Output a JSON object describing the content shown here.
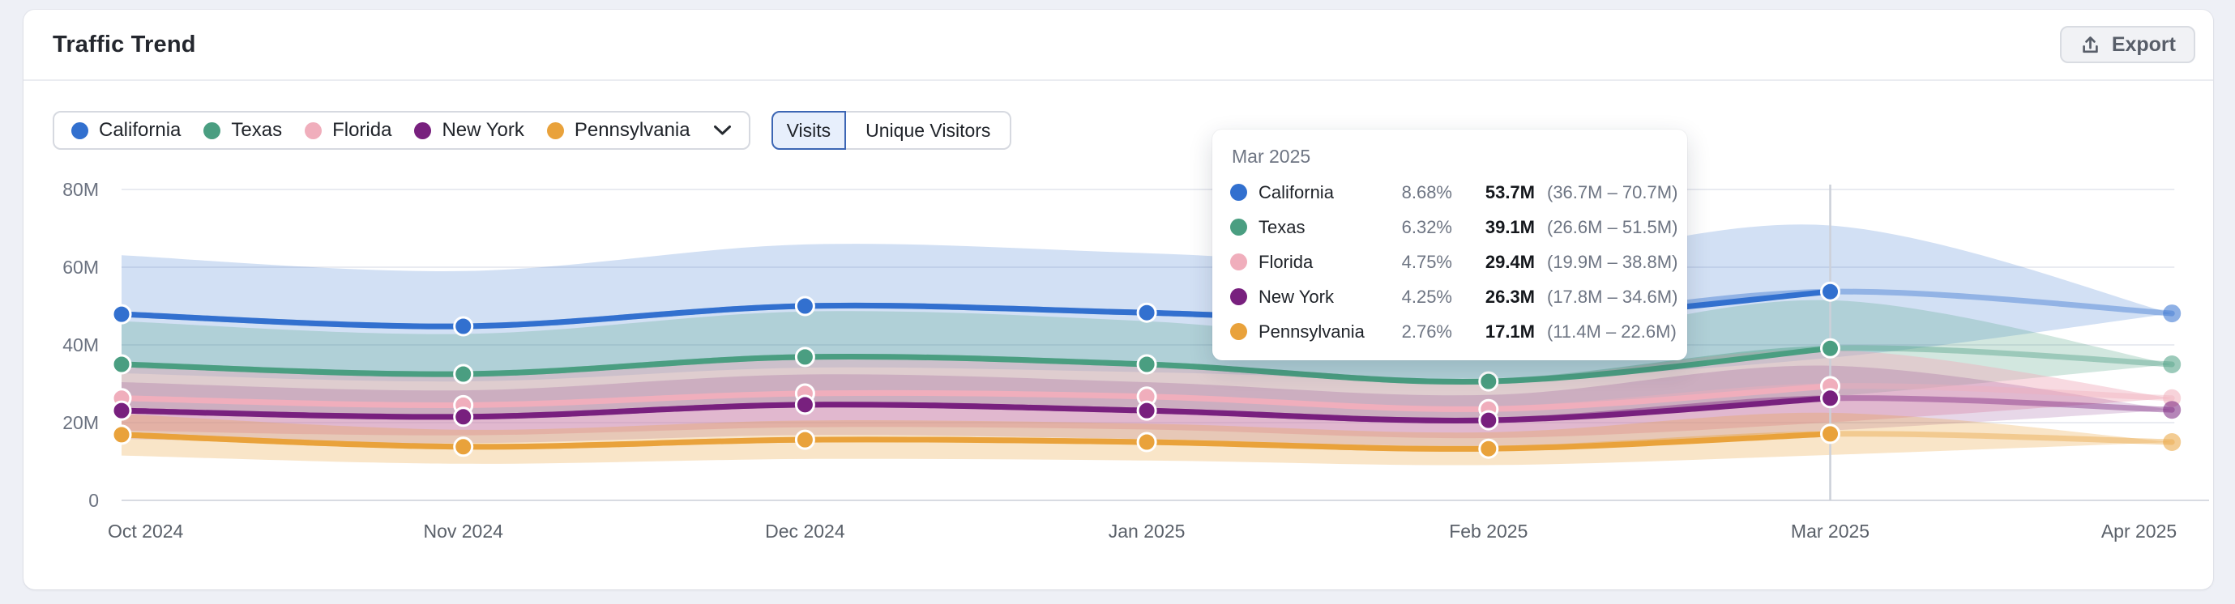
{
  "header": {
    "title": "Traffic Trend",
    "export_label": "Export"
  },
  "legend": {
    "items": [
      {
        "label": "California",
        "color": "#3270cf"
      },
      {
        "label": "Texas",
        "color": "#4a9e81"
      },
      {
        "label": "Florida",
        "color": "#f0aebc"
      },
      {
        "label": "New York",
        "color": "#78207e"
      },
      {
        "label": "Pennsylvania",
        "color": "#e9a23b"
      }
    ]
  },
  "tabs": {
    "items": [
      {
        "label": "Visits",
        "selected": true
      },
      {
        "label": "Unique Visitors",
        "selected": false
      }
    ]
  },
  "tooltip": {
    "title": "Mar 2025",
    "rows": [
      {
        "name": "California",
        "color": "#3270cf",
        "percent": "8.68%",
        "value": "53.7M",
        "range": "(36.7M – 70.7M)"
      },
      {
        "name": "Texas",
        "color": "#4a9e81",
        "percent": "6.32%",
        "value": "39.1M",
        "range": "(26.6M – 51.5M)"
      },
      {
        "name": "Florida",
        "color": "#f0aebc",
        "percent": "4.75%",
        "value": "29.4M",
        "range": "(19.9M – 38.8M)"
      },
      {
        "name": "New York",
        "color": "#78207e",
        "percent": "4.25%",
        "value": "26.3M",
        "range": "(17.8M – 34.6M)"
      },
      {
        "name": "Pennsylvania",
        "color": "#e9a23b",
        "percent": "2.76%",
        "value": "17.1M",
        "range": "(11.4M – 22.6M)"
      }
    ]
  },
  "chart_data": {
    "type": "line",
    "title": "Traffic Trend",
    "unit_note": "values in millions of visits",
    "x_categories": [
      "Oct 2024",
      "Nov 2024",
      "Dec 2024",
      "Jan 2025",
      "Feb 2025",
      "Mar 2025",
      "Apr 2025"
    ],
    "y_ticks": [
      {
        "value": 0,
        "label": "0"
      },
      {
        "value": 20,
        "label": "20M"
      },
      {
        "value": 40,
        "label": "40M"
      },
      {
        "value": 60,
        "label": "60M"
      },
      {
        "value": 80,
        "label": "80M"
      }
    ],
    "ylim": [
      0,
      80
    ],
    "band_ratio": 0.317,
    "forecast_last_segment": true,
    "hover": {
      "index": 5,
      "label": "Mar 2025"
    },
    "series": [
      {
        "name": "California",
        "color": "#3270cf",
        "band_opacity": 0.22,
        "values": [
          47.9,
          44.8,
          50.0,
          48.3,
          46.0,
          53.7,
          48.1
        ]
      },
      {
        "name": "Texas",
        "color": "#4a9e81",
        "band_opacity": 0.25,
        "values": [
          35.0,
          32.5,
          36.9,
          35.0,
          30.6,
          39.1,
          35.0
        ]
      },
      {
        "name": "Florida",
        "color": "#f0aebc",
        "band_opacity": 0.45,
        "values": [
          26.3,
          24.5,
          27.5,
          26.7,
          23.5,
          29.4,
          26.3
        ]
      },
      {
        "name": "New York",
        "color": "#78207e",
        "band_opacity": 0.18,
        "values": [
          23.1,
          21.5,
          24.6,
          23.1,
          20.6,
          26.3,
          23.3
        ]
      },
      {
        "name": "Pennsylvania",
        "color": "#e9a23b",
        "band_opacity": 0.28,
        "values": [
          16.9,
          13.8,
          15.6,
          15.0,
          13.3,
          17.1,
          15.0
        ]
      }
    ]
  }
}
